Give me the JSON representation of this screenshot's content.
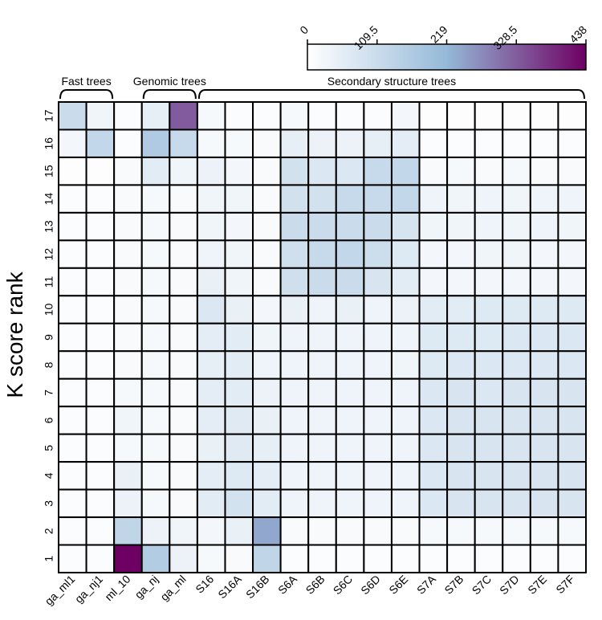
{
  "chart_data": {
    "type": "heatmap",
    "ylabel": "K score rank",
    "xlabel": "",
    "title": "",
    "columns": [
      "ga_ml1",
      "ga_nj1",
      "ml_10",
      "ga_nj",
      "ga_ml",
      "S16",
      "S16A",
      "S16B",
      "S6A",
      "S6B",
      "S6C",
      "S6D",
      "S6E",
      "S7A",
      "S7B",
      "S7C",
      "S7D",
      "S7E",
      "S7F"
    ],
    "rows_top_to_bottom": [
      "17",
      "16",
      "15",
      "14",
      "13",
      "12",
      "11",
      "10",
      "9",
      "8",
      "7",
      "6",
      "5",
      "4",
      "3",
      "2",
      "1"
    ],
    "groups": [
      {
        "label": "Fast trees",
        "from": "ga_ml1",
        "to": "ga_nj1"
      },
      {
        "label": "Genomic trees",
        "from": "ga_nj",
        "to": "ga_ml"
      },
      {
        "label": "Secondary structure trees",
        "from": "S16",
        "to": "S7F"
      }
    ],
    "colorbar": {
      "min": 0,
      "max": 438,
      "ticks": [
        "0",
        "109.5",
        "219",
        "328.5",
        "438"
      ],
      "stops": [
        "#ffffff",
        "#95b9d8",
        "#6e0063"
      ]
    },
    "values": [
      [
        110,
        30,
        8,
        50,
        330,
        20,
        10,
        8,
        20,
        10,
        10,
        10,
        25,
        5,
        5,
        5,
        5,
        5,
        5
      ],
      [
        25,
        125,
        8,
        165,
        115,
        20,
        20,
        15,
        50,
        40,
        40,
        50,
        55,
        10,
        10,
        10,
        10,
        10,
        10
      ],
      [
        5,
        5,
        15,
        60,
        30,
        40,
        25,
        15,
        95,
        75,
        75,
        115,
        125,
        15,
        20,
        15,
        20,
        15,
        15
      ],
      [
        10,
        10,
        15,
        20,
        15,
        30,
        30,
        15,
        95,
        95,
        115,
        115,
        125,
        35,
        30,
        35,
        30,
        35,
        35
      ],
      [
        10,
        10,
        15,
        20,
        15,
        30,
        25,
        15,
        110,
        110,
        110,
        110,
        85,
        30,
        30,
        35,
        30,
        35,
        30
      ],
      [
        10,
        10,
        15,
        20,
        15,
        35,
        30,
        15,
        100,
        115,
        125,
        105,
        70,
        25,
        25,
        30,
        30,
        25,
        25
      ],
      [
        10,
        10,
        15,
        20,
        15,
        45,
        30,
        15,
        100,
        110,
        110,
        80,
        60,
        25,
        25,
        25,
        25,
        25,
        25
      ],
      [
        10,
        10,
        15,
        20,
        15,
        75,
        45,
        25,
        45,
        35,
        45,
        35,
        40,
        60,
        60,
        70,
        70,
        70,
        70
      ],
      [
        10,
        10,
        15,
        20,
        15,
        55,
        60,
        30,
        35,
        35,
        35,
        35,
        35,
        70,
        70,
        70,
        75,
        75,
        75
      ],
      [
        10,
        10,
        15,
        20,
        15,
        50,
        60,
        35,
        35,
        35,
        35,
        35,
        30,
        70,
        75,
        75,
        75,
        75,
        75
      ],
      [
        10,
        10,
        20,
        20,
        15,
        55,
        60,
        40,
        35,
        35,
        35,
        35,
        35,
        75,
        80,
        75,
        80,
        80,
        80
      ],
      [
        10,
        10,
        30,
        20,
        15,
        55,
        65,
        45,
        35,
        35,
        35,
        35,
        35,
        75,
        80,
        80,
        80,
        80,
        80
      ],
      [
        10,
        10,
        20,
        20,
        15,
        45,
        65,
        50,
        35,
        35,
        35,
        35,
        35,
        75,
        80,
        80,
        80,
        80,
        80
      ],
      [
        10,
        10,
        45,
        20,
        15,
        55,
        70,
        55,
        35,
        35,
        35,
        35,
        35,
        75,
        80,
        80,
        80,
        80,
        80
      ],
      [
        10,
        10,
        40,
        20,
        15,
        60,
        90,
        60,
        35,
        35,
        35,
        35,
        35,
        75,
        80,
        80,
        80,
        80,
        80
      ],
      [
        10,
        10,
        130,
        40,
        30,
        25,
        45,
        240,
        15,
        15,
        15,
        15,
        15,
        20,
        20,
        20,
        20,
        20,
        20
      ],
      [
        10,
        10,
        438,
        160,
        40,
        20,
        15,
        130,
        10,
        10,
        10,
        10,
        10,
        10,
        10,
        10,
        10,
        10,
        10
      ]
    ]
  }
}
